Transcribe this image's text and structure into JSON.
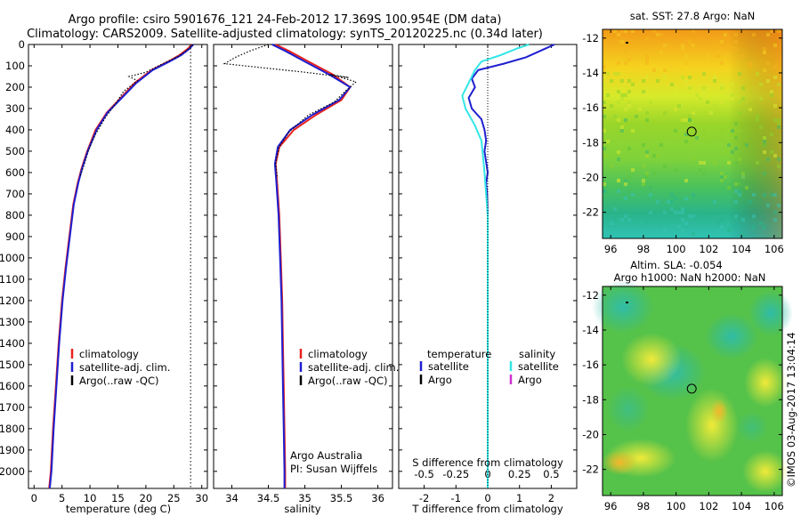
{
  "header": {
    "line1": "Argo profile: csiro 5901676_121 24-Feb-2012 17.369S 100.954E (DM data)",
    "line2": "Climatology: CARS2009. Satellite-adjusted climatology: synTS_20120225.nc (0.34d later)"
  },
  "colors": {
    "climatology": "#e8221f",
    "satellite": "#1f1fd0",
    "argo": "#000000",
    "salinity_satellite": "#33e6e6",
    "salinity_argo": "#cc33cc"
  },
  "chart_data": [
    {
      "type": "line",
      "name": "temperature-profile",
      "xlabel": "temperature (deg C)",
      "xlim": [
        -1,
        31
      ],
      "ylim": [
        2080,
        0
      ],
      "xticks": [
        0,
        5,
        10,
        15,
        20,
        25,
        30
      ],
      "yticks": [
        0,
        100,
        200,
        300,
        400,
        500,
        600,
        700,
        800,
        900,
        1000,
        1100,
        1200,
        1300,
        1400,
        1500,
        1600,
        1700,
        1800,
        1900,
        2000
      ],
      "legend": [
        "climatology",
        "satellite-adj. clim.",
        "Argo(..raw -QC)"
      ],
      "surface_line_x": 28,
      "series": [
        {
          "name": "climatology",
          "style": "solid",
          "color_key": "climatology",
          "points": [
            [
              28.2,
              0
            ],
            [
              27.5,
              20
            ],
            [
              26,
              50
            ],
            [
              24,
              80
            ],
            [
              21,
              120
            ],
            [
              18,
              180
            ],
            [
              15.5,
              250
            ],
            [
              13,
              320
            ],
            [
              11,
              400
            ],
            [
              9.5,
              500
            ],
            [
              8.5,
              580
            ],
            [
              7.8,
              650
            ],
            [
              7,
              750
            ],
            [
              6.3,
              900
            ],
            [
              5.6,
              1050
            ],
            [
              5,
              1200
            ],
            [
              4.4,
              1400
            ],
            [
              3.9,
              1600
            ],
            [
              3.4,
              1800
            ],
            [
              3,
              2000
            ],
            [
              2.7,
              2080
            ]
          ]
        },
        {
          "name": "satellite-adj. clim.",
          "style": "solid",
          "color_key": "satellite",
          "points": [
            [
              28.5,
              0
            ],
            [
              27.8,
              20
            ],
            [
              26.3,
              50
            ],
            [
              24.2,
              80
            ],
            [
              21.2,
              120
            ],
            [
              18.3,
              180
            ],
            [
              15.7,
              250
            ],
            [
              13.1,
              320
            ],
            [
              11.2,
              400
            ],
            [
              9.6,
              500
            ],
            [
              8.6,
              580
            ],
            [
              7.9,
              650
            ],
            [
              7.1,
              750
            ],
            [
              6.4,
              900
            ],
            [
              5.7,
              1050
            ],
            [
              5.1,
              1200
            ],
            [
              4.5,
              1400
            ],
            [
              4,
              1600
            ],
            [
              3.5,
              1800
            ],
            [
              3.1,
              2000
            ],
            [
              2.8,
              2080
            ]
          ]
        },
        {
          "name": "Argo(..raw -QC)",
          "style": "dotted",
          "color_key": "argo",
          "points": [
            [
              28.4,
              0
            ],
            [
              27.2,
              30
            ],
            [
              25.5,
              60
            ],
            [
              23,
              90
            ],
            [
              20,
              130
            ],
            [
              17,
              150
            ],
            [
              18.5,
              170
            ],
            [
              16,
              220
            ],
            [
              14.5,
              280
            ],
            [
              12.8,
              340
            ],
            [
              11,
              420
            ],
            [
              9.8,
              490
            ],
            [
              9,
              560
            ],
            [
              8.2,
              620
            ]
          ]
        }
      ]
    },
    {
      "type": "line",
      "name": "salinity-profile",
      "xlabel": "salinity",
      "xlim": [
        33.75,
        36.2
      ],
      "ylim": [
        2080,
        0
      ],
      "xticks": [
        34,
        34.5,
        35,
        35.5,
        36
      ],
      "legend": [
        "climatology",
        "satellite-adj. clim.",
        "Argo(..raw -QC)"
      ],
      "annotation": [
        "Argo Australia",
        "PI: Susan Wijffels"
      ],
      "series": [
        {
          "name": "climatology",
          "style": "solid",
          "color_key": "climatology",
          "points": [
            [
              34.6,
              0
            ],
            [
              34.78,
              30
            ],
            [
              35.05,
              80
            ],
            [
              35.38,
              140
            ],
            [
              35.62,
              200
            ],
            [
              35.5,
              260
            ],
            [
              35.15,
              330
            ],
            [
              34.85,
              400
            ],
            [
              34.65,
              480
            ],
            [
              34.6,
              560
            ],
            [
              34.62,
              650
            ],
            [
              34.65,
              800
            ],
            [
              34.67,
              1000
            ],
            [
              34.69,
              1200
            ],
            [
              34.7,
              1400
            ],
            [
              34.71,
              1600
            ],
            [
              34.72,
              1800
            ],
            [
              34.73,
              2000
            ],
            [
              34.73,
              2080
            ]
          ]
        },
        {
          "name": "satellite-adj. clim.",
          "style": "solid",
          "color_key": "satellite",
          "points": [
            [
              34.55,
              0
            ],
            [
              34.73,
              30
            ],
            [
              35.0,
              80
            ],
            [
              35.33,
              140
            ],
            [
              35.62,
              200
            ],
            [
              35.47,
              260
            ],
            [
              35.1,
              330
            ],
            [
              34.8,
              400
            ],
            [
              34.63,
              480
            ],
            [
              34.59,
              560
            ],
            [
              34.61,
              650
            ],
            [
              34.64,
              800
            ],
            [
              34.66,
              1000
            ],
            [
              34.68,
              1200
            ],
            [
              34.69,
              1400
            ],
            [
              34.7,
              1600
            ],
            [
              34.71,
              1800
            ],
            [
              34.72,
              2000
            ],
            [
              34.72,
              2080
            ]
          ]
        },
        {
          "name": "Argo(..raw -QC)",
          "style": "dotted",
          "color_key": "argo",
          "points": [
            [
              34.5,
              0
            ],
            [
              34.25,
              30
            ],
            [
              34.05,
              60
            ],
            [
              33.9,
              90
            ],
            [
              35.0,
              130
            ],
            [
              35.6,
              155
            ],
            [
              35.35,
              140
            ],
            [
              35.7,
              175
            ],
            [
              35.55,
              220
            ],
            [
              35.4,
              270
            ],
            [
              35.05,
              330
            ],
            [
              34.78,
              410
            ],
            [
              34.65,
              480
            ],
            [
              34.6,
              550
            ],
            [
              34.62,
              620
            ]
          ]
        }
      ]
    },
    {
      "type": "line",
      "name": "difference-profile",
      "xlabel": "T difference from climatology",
      "xlabel2": "S difference from climatology",
      "xlim": [
        -2.8,
        2.8
      ],
      "ylim": [
        2080,
        0
      ],
      "xticks": [
        -2,
        -1,
        0,
        1,
        2
      ],
      "xticks2_labels": [
        "-0.5",
        "-0.25",
        "0",
        "0.25",
        "0.5"
      ],
      "xticks2_positions": [
        -2,
        -1,
        0,
        1,
        2
      ],
      "legend_titles": [
        "temperature",
        "salinity"
      ],
      "legend_t": [
        "satellite",
        "Argo"
      ],
      "legend_s": [
        "satellite",
        "Argo"
      ],
      "series": [
        {
          "name": "temperature satellite",
          "style": "solid",
          "color_key": "satellite",
          "points": [
            [
              2.1,
              0
            ],
            [
              1.8,
              20
            ],
            [
              1.2,
              60
            ],
            [
              0.5,
              90
            ],
            [
              -0.3,
              120
            ],
            [
              -0.5,
              160
            ],
            [
              -0.4,
              200
            ],
            [
              -0.6,
              250
            ],
            [
              -0.5,
              300
            ],
            [
              -0.2,
              350
            ],
            [
              -0.1,
              400
            ],
            [
              -0.05,
              450
            ],
            [
              -0.1,
              500
            ],
            [
              -0.05,
              550
            ],
            [
              0.0,
              600
            ],
            [
              -0.05,
              650
            ],
            [
              -0.02,
              700
            ],
            [
              0,
              800
            ],
            [
              0,
              1000
            ],
            [
              0,
              1200
            ],
            [
              0,
              1400
            ],
            [
              0,
              1600
            ],
            [
              0,
              1800
            ],
            [
              0,
              2000
            ],
            [
              0,
              2080
            ]
          ]
        },
        {
          "name": "salinity satellite",
          "style": "solid",
          "color_key": "salinity_satellite",
          "points": [
            [
              1.3,
              0
            ],
            [
              0.9,
              20
            ],
            [
              0.4,
              50
            ],
            [
              -0.2,
              80
            ],
            [
              -0.4,
              120
            ],
            [
              -0.6,
              180
            ],
            [
              -0.8,
              240
            ],
            [
              -0.7,
              300
            ],
            [
              -0.4,
              380
            ],
            [
              -0.2,
              450
            ],
            [
              -0.15,
              520
            ],
            [
              -0.1,
              600
            ],
            [
              -0.05,
              700
            ],
            [
              0,
              800
            ],
            [
              0,
              1000
            ],
            [
              0,
              1200
            ],
            [
              0,
              1400
            ],
            [
              0,
              1600
            ],
            [
              0,
              1800
            ],
            [
              0,
              2000
            ],
            [
              0,
              2080
            ]
          ]
        }
      ]
    },
    {
      "type": "heatmap",
      "name": "sst-map",
      "title": "sat. SST: 27.8 Argo: NaN",
      "xlim": [
        95.5,
        106.5
      ],
      "ylim": [
        -23.5,
        -11.5
      ],
      "xticks": [
        96,
        98,
        100,
        102,
        104,
        106
      ],
      "yticks": [
        -12,
        -14,
        -16,
        -18,
        -20,
        -22
      ],
      "argo_position": [
        100.954,
        -17.369
      ]
    },
    {
      "type": "heatmap",
      "name": "sla-map",
      "title1": "Altim. SLA: -0.054",
      "title2": "Argo h1000: NaN h2000: NaN",
      "xlim": [
        95.5,
        106.5
      ],
      "ylim": [
        -23.5,
        -11.5
      ],
      "xticks": [
        96,
        98,
        100,
        102,
        104,
        106
      ],
      "yticks": [
        -12,
        -14,
        -16,
        -18,
        -20,
        -22
      ],
      "argo_position": [
        100.954,
        -17.369
      ]
    }
  ],
  "footer": {
    "credit": "©IMOS 03-Aug-2017 13:04:14"
  }
}
